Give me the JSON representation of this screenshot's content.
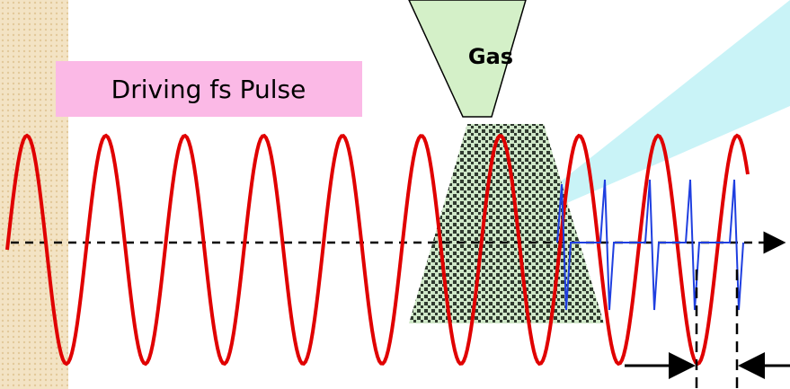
{
  "pulse_label": "Driving fs Pulse",
  "gas_label": "Gas"
}
